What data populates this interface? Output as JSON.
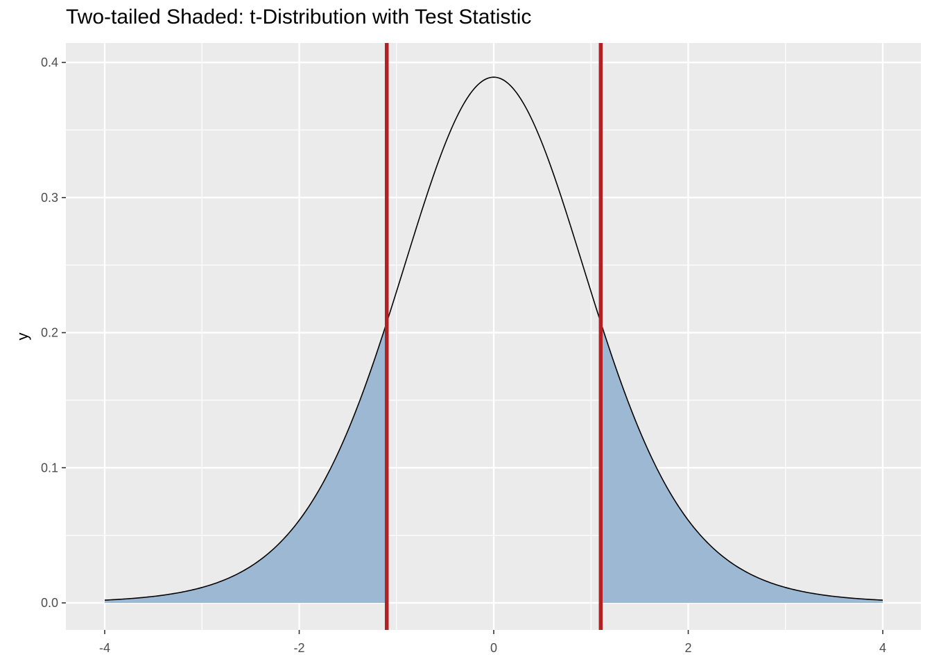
{
  "chart_data": {
    "type": "area",
    "title": "Two-tailed Shaded: t-Distribution with Test Statistic",
    "xlabel": "",
    "ylabel": "y",
    "xlim": [
      -4,
      4
    ],
    "ylim": [
      0,
      0.4
    ],
    "x_ticks": [
      -4,
      -2,
      0,
      2,
      4
    ],
    "x_tick_labels": [
      "-4",
      "-2",
      "0",
      "2",
      "4"
    ],
    "y_ticks": [
      0,
      0.1,
      0.2,
      0.3,
      0.4
    ],
    "y_tick_labels": [
      "0.0",
      "0.1",
      "0.2",
      "0.3",
      "0.4"
    ],
    "grid": true,
    "background_color": "#ebebeb",
    "grid_color": "#ffffff",
    "curve_color": "#000000",
    "shade_color": "#9cb8d3",
    "critical_line_color": "#b22222",
    "distribution": "t",
    "degrees_of_freedom": 10,
    "critical_values": [
      -1.1,
      1.1
    ],
    "shaded_region": "two-tailed"
  }
}
